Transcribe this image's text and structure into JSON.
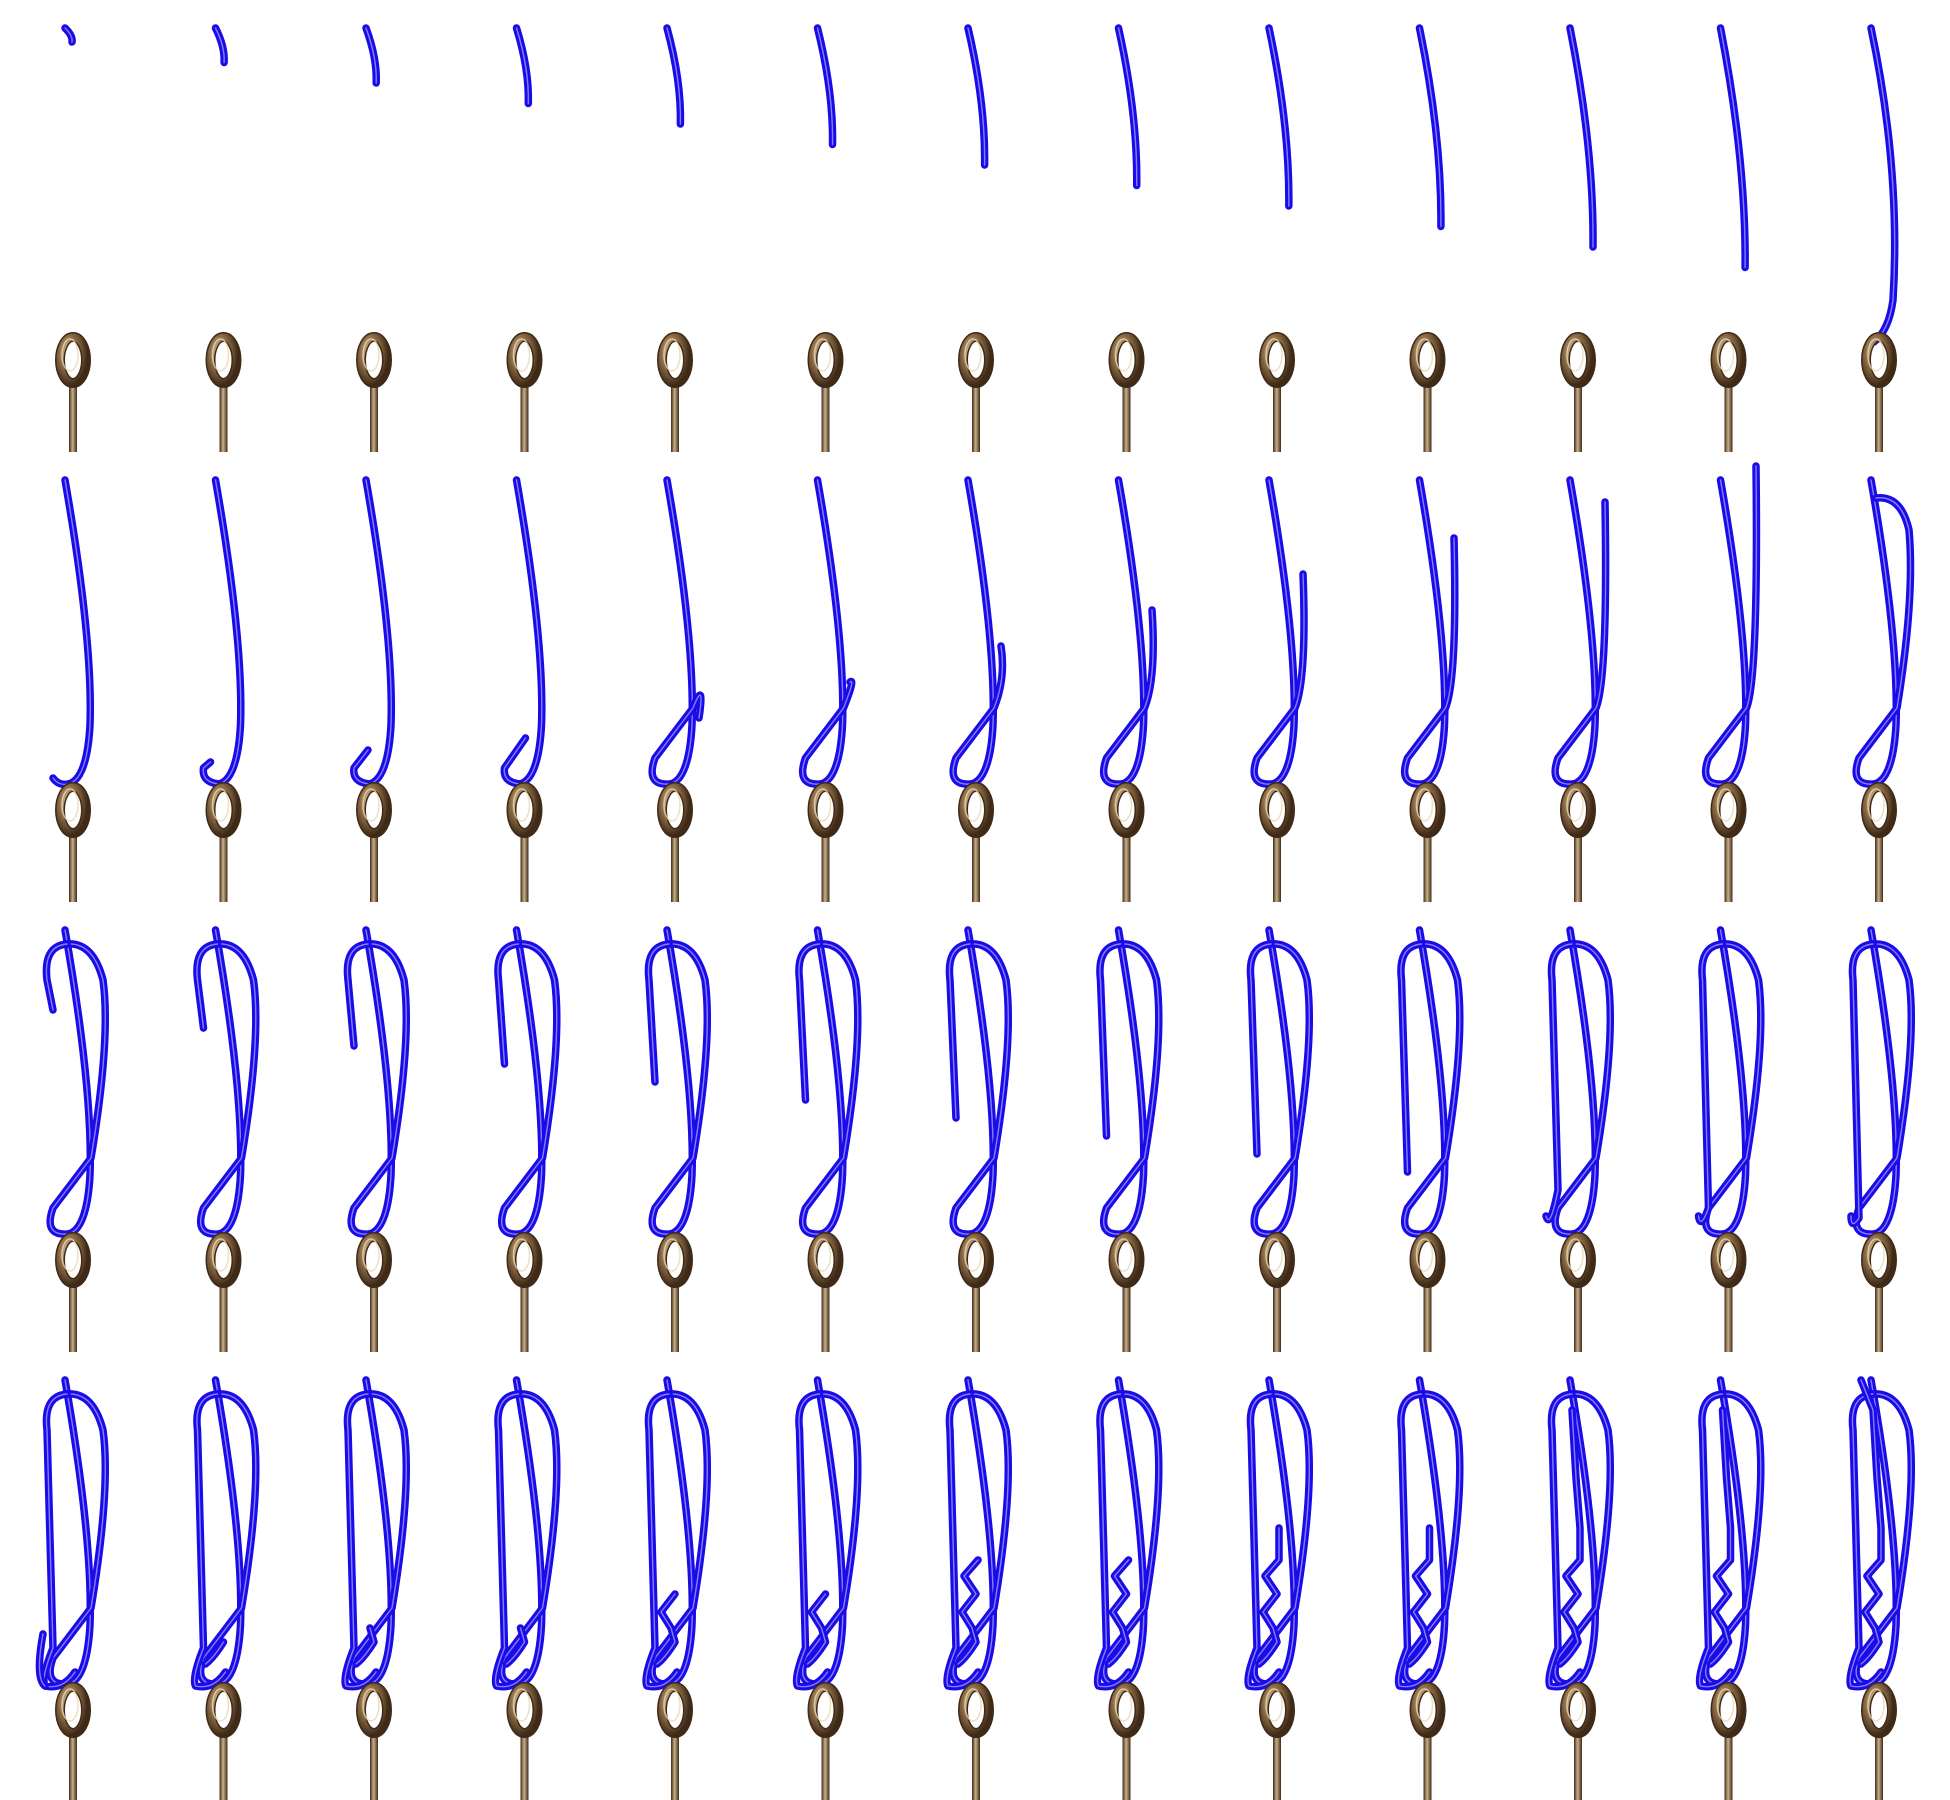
{
  "figure": {
    "rows": 4,
    "columns": 13,
    "frames_total": 52,
    "colors": {
      "background": "#ffffff",
      "line": "#1b0be6",
      "line_highlight": "#8f8cff",
      "ring_metal": "#8a6a45",
      "ring_dark": "#3f2a17",
      "ring_light": "#ead8b2",
      "shank": "#6b5238",
      "shank_light": "#c9b08a"
    },
    "stages": [
      "line-descends-toward-eye",
      "line-threads-eye-and-wraps",
      "tag-end-forms-loop-and-returns",
      "wraps-and-final-tuck"
    ]
  }
}
